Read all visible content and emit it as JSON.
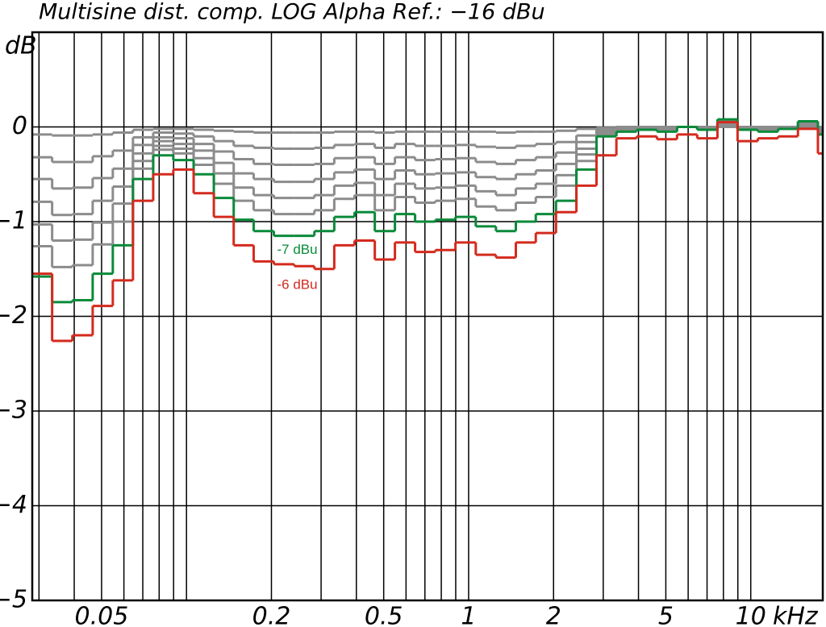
{
  "chart_data": {
    "type": "line",
    "title": "Multisine dist. comp. LOG Alpha Ref.: −16 dBu",
    "y_label": "dB",
    "x_label": "kHz",
    "x_scale": "log",
    "step": "post",
    "grid": true,
    "xlim": [
      0.0284,
      18
    ],
    "ylim": [
      -5,
      1
    ],
    "xticks": [
      0.05,
      0.2,
      0.5,
      1,
      2,
      5,
      10
    ],
    "xminor_ticks": [
      0.03,
      0.04,
      0.06,
      0.07,
      0.08,
      0.09,
      0.1,
      0.3,
      0.4,
      0.6,
      0.7,
      0.8,
      0.9,
      3,
      4,
      6,
      7,
      8,
      9
    ],
    "yticks": [
      {
        "value": -5,
        "label": "−5"
      },
      {
        "value": -4,
        "label": "−4"
      },
      {
        "value": -3,
        "label": "−3"
      },
      {
        "value": -2,
        "label": "−2"
      },
      {
        "value": -1,
        "label": "−1"
      },
      0
    ],
    "x": [
      0.0284,
      0.0334,
      0.0394,
      0.0465,
      0.0548,
      0.0646,
      0.0762,
      0.0898,
      0.106,
      0.125,
      0.147,
      0.173,
      0.204,
      0.241,
      0.284,
      0.334,
      0.394,
      0.465,
      0.548,
      0.646,
      0.762,
      0.898,
      1.06,
      1.25,
      1.47,
      1.73,
      2.04,
      2.41,
      2.84,
      3.34,
      3.94,
      4.65,
      5.48,
      6.46,
      7.62,
      8.98,
      10.6,
      12.5,
      14.7,
      17.3
    ],
    "series": [
      {
        "color": "#8c8c8c",
        "values": [
          -0.08,
          -0.09,
          -0.09,
          -0.08,
          -0.06,
          -0.03,
          -0.02,
          -0.02,
          -0.03,
          -0.04,
          -0.05,
          -0.06,
          -0.06,
          -0.06,
          -0.06,
          -0.05,
          -0.05,
          -0.06,
          -0.05,
          -0.05,
          -0.05,
          -0.05,
          -0.05,
          -0.06,
          -0.05,
          -0.05,
          -0.04,
          -0.02,
          -0.01,
          0,
          0,
          0,
          0,
          0,
          0,
          0,
          0,
          0,
          0,
          0
        ]
      },
      {
        "color": "#8c8c8c",
        "values": [
          -0.32,
          -0.37,
          -0.37,
          -0.31,
          -0.25,
          -0.11,
          -0.06,
          -0.07,
          -0.1,
          -0.15,
          -0.2,
          -0.22,
          -0.23,
          -0.23,
          -0.22,
          -0.19,
          -0.18,
          -0.22,
          -0.18,
          -0.2,
          -0.2,
          -0.19,
          -0.21,
          -0.22,
          -0.2,
          -0.18,
          -0.16,
          -0.09,
          -0.02,
          -0.01,
          -0.01,
          -0.01,
          0,
          -0.01,
          0.02,
          -0.01,
          -0.01,
          0,
          0.01,
          -0.02
        ]
      },
      {
        "color": "#8c8c8c",
        "values": [
          -0.55,
          -0.65,
          -0.64,
          -0.54,
          -0.44,
          -0.19,
          -0.11,
          -0.12,
          -0.18,
          -0.26,
          -0.34,
          -0.39,
          -0.4,
          -0.4,
          -0.39,
          -0.33,
          -0.32,
          -0.39,
          -0.32,
          -0.35,
          -0.34,
          -0.33,
          -0.37,
          -0.39,
          -0.35,
          -0.32,
          -0.27,
          -0.16,
          -0.04,
          -0.02,
          -0.01,
          -0.02,
          0,
          -0.01,
          0.03,
          -0.01,
          -0.02,
          -0.01,
          0.02,
          -0.03
        ]
      },
      {
        "color": "#8c8c8c",
        "values": [
          -0.79,
          -0.93,
          -0.92,
          -0.78,
          -0.63,
          -0.28,
          -0.15,
          -0.18,
          -0.25,
          -0.38,
          -0.49,
          -0.55,
          -0.58,
          -0.58,
          -0.55,
          -0.48,
          -0.45,
          -0.55,
          -0.46,
          -0.5,
          -0.49,
          -0.48,
          -0.53,
          -0.55,
          -0.5,
          -0.46,
          -0.39,
          -0.23,
          -0.05,
          -0.03,
          -0.02,
          -0.03,
          0,
          -0.02,
          0.04,
          -0.02,
          -0.03,
          -0.01,
          0.03,
          -0.04
        ]
      },
      {
        "color": "#8c8c8c",
        "values": [
          -1.03,
          -1.2,
          -1.19,
          -1.01,
          -0.81,
          -0.36,
          -0.2,
          -0.23,
          -0.33,
          -0.49,
          -0.64,
          -0.72,
          -0.75,
          -0.75,
          -0.72,
          -0.62,
          -0.59,
          -0.72,
          -0.6,
          -0.65,
          -0.64,
          -0.62,
          -0.68,
          -0.72,
          -0.65,
          -0.6,
          -0.51,
          -0.29,
          -0.07,
          -0.03,
          -0.02,
          -0.03,
          0,
          -0.02,
          0.05,
          -0.02,
          -0.03,
          -0.01,
          0.04,
          -0.05
        ]
      },
      {
        "color": "#8c8c8c",
        "values": [
          -1.26,
          -1.48,
          -1.46,
          -1.24,
          -1.0,
          -0.44,
          -0.24,
          -0.28,
          -0.4,
          -0.6,
          -0.78,
          -0.88,
          -0.92,
          -0.92,
          -0.88,
          -0.76,
          -0.72,
          -0.88,
          -0.74,
          -0.8,
          -0.78,
          -0.76,
          -0.84,
          -0.88,
          -0.8,
          -0.74,
          -0.62,
          -0.36,
          -0.08,
          -0.04,
          -0.02,
          -0.04,
          0,
          -0.02,
          0.06,
          -0.02,
          -0.04,
          -0.02,
          0.05,
          -0.06
        ]
      },
      {
        "name": "-7 dBu",
        "color": "#0a8a3a",
        "values": [
          -1.58,
          -1.85,
          -1.83,
          -1.55,
          -1.25,
          -0.55,
          -0.3,
          -0.35,
          -0.5,
          -0.75,
          -0.98,
          -1.1,
          -1.15,
          -1.15,
          -1.1,
          -0.95,
          -0.9,
          -1.1,
          -0.92,
          -1.0,
          -0.98,
          -0.95,
          -1.05,
          -1.1,
          -1.0,
          -0.92,
          -0.78,
          -0.45,
          -0.1,
          -0.05,
          -0.03,
          -0.05,
          0,
          -0.03,
          0.08,
          -0.03,
          -0.05,
          -0.02,
          0.06,
          -0.08
        ]
      },
      {
        "name": "-6 dBu",
        "color": "#d42a1e",
        "values": [
          -1.55,
          -2.26,
          -2.2,
          -1.89,
          -1.62,
          -0.78,
          -0.5,
          -0.45,
          -0.7,
          -0.95,
          -1.25,
          -1.42,
          -1.45,
          -1.47,
          -1.5,
          -1.25,
          -1.2,
          -1.4,
          -1.22,
          -1.32,
          -1.3,
          -1.22,
          -1.35,
          -1.38,
          -1.22,
          -1.12,
          -0.9,
          -0.62,
          -0.3,
          -0.12,
          -0.1,
          -0.13,
          -0.08,
          -0.12,
          0.05,
          -0.15,
          -0.12,
          -0.1,
          -0.02,
          -0.28
        ]
      }
    ]
  }
}
